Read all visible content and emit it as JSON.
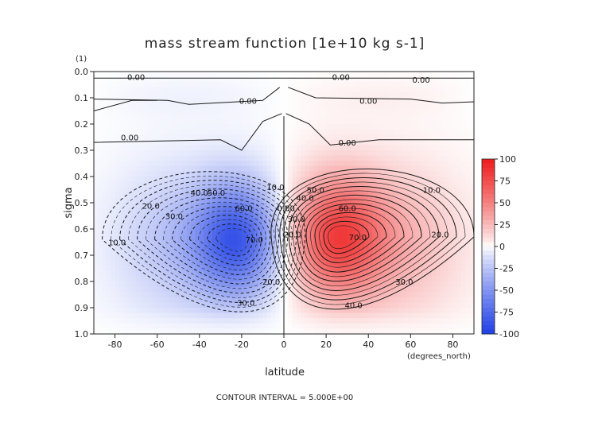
{
  "title": "mass stream function [1e+10 kg s-1]",
  "xlabel": "latitude",
  "ylabel": "sigma",
  "x_unit_note": "(degrees_north)",
  "y_unit_note": "(1)",
  "footer": "CONTOUR INTERVAL = 5.000E+00",
  "colors": {
    "negative": "#2040e6",
    "zero": "#ffffff",
    "positive": "#ee1c1c"
  },
  "chart_data": {
    "type": "heatmap",
    "title": "mass stream function [1e+10 kg s-1]",
    "xlabel": "latitude",
    "ylabel": "sigma",
    "xlim": [
      -90,
      90
    ],
    "ylim": [
      1.0,
      0.0
    ],
    "y_inverted": true,
    "xticks": [
      -80,
      -60,
      -40,
      -20,
      0,
      20,
      40,
      60,
      80
    ],
    "yticks": [
      "0.0",
      "0.1",
      "0.2",
      "0.3",
      "0.4",
      "0.5",
      "0.6",
      "0.7",
      "0.8",
      "0.9",
      "1.0"
    ],
    "contour_interval": 5.0,
    "colorbar": {
      "min": -100,
      "max": 100,
      "ticks": [
        100,
        75,
        50,
        25,
        0,
        -25,
        -50,
        -75,
        -100
      ]
    },
    "cells": [
      {
        "name": "southern cell",
        "sign": "negative",
        "center": [
          -22,
          0.64
        ],
        "peak": -75
      },
      {
        "name": "northern cell",
        "sign": "positive",
        "center": [
          26,
          0.64
        ],
        "peak": 75
      }
    ],
    "contour_labels": [
      {
        "text": "0.00",
        "x": -70,
        "y": 0.02
      },
      {
        "text": "0.00",
        "x": 27,
        "y": 0.02
      },
      {
        "text": "0.00",
        "x": 65,
        "y": 0.03
      },
      {
        "text": "0.00",
        "x": -17,
        "y": 0.11
      },
      {
        "text": "0.00",
        "x": 40,
        "y": 0.11
      },
      {
        "text": "0.00",
        "x": -73,
        "y": 0.25
      },
      {
        "text": "0.00",
        "x": 30,
        "y": 0.27
      },
      {
        "text": "10.0",
        "x": -79,
        "y": 0.65
      },
      {
        "text": "20.0",
        "x": -63,
        "y": 0.51
      },
      {
        "text": "30.0",
        "x": -52,
        "y": 0.55
      },
      {
        "text": "40.0",
        "x": -40,
        "y": 0.46
      },
      {
        "text": "50.0",
        "x": -32,
        "y": 0.46
      },
      {
        "text": "60.0",
        "x": -19,
        "y": 0.52
      },
      {
        "text": "70.0",
        "x": -14,
        "y": 0.64
      },
      {
        "text": "30.0",
        "x": -18,
        "y": 0.88
      },
      {
        "text": "20.0",
        "x": -6,
        "y": 0.8
      },
      {
        "text": "10.0",
        "x": -4,
        "y": 0.44
      },
      {
        "text": "10.0",
        "x": 70,
        "y": 0.45
      },
      {
        "text": "20.0",
        "x": 74,
        "y": 0.62
      },
      {
        "text": "30.0",
        "x": 57,
        "y": 0.8
      },
      {
        "text": "40.0",
        "x": 33,
        "y": 0.89
      },
      {
        "text": "60.0",
        "x": 30,
        "y": 0.52
      },
      {
        "text": "70.0",
        "x": 35,
        "y": 0.63
      },
      {
        "text": "50.0",
        "x": 15,
        "y": 0.45
      },
      {
        "text": "40.0",
        "x": 10,
        "y": 0.48
      },
      {
        "text": "30.0",
        "x": 6,
        "y": 0.56
      },
      {
        "text": "20.0",
        "x": 4,
        "y": 0.62
      },
      {
        "text": "0.00",
        "x": 1,
        "y": 0.52
      }
    ]
  }
}
